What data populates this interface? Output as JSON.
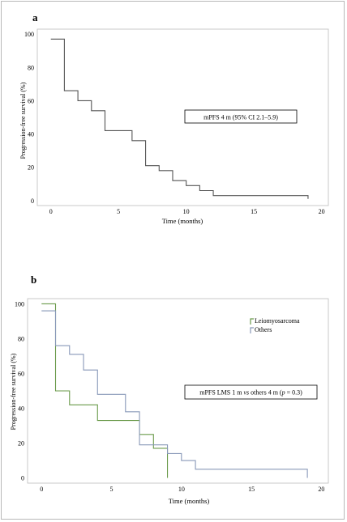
{
  "chart_data": [
    {
      "panel_label": "a",
      "type": "line",
      "step": true,
      "xlabel": "Time (months)",
      "ylabel": "Progression-free survival (%)",
      "xlim": [
        -1,
        20.5
      ],
      "ylim": [
        -3,
        103
      ],
      "x_ticks": [
        0,
        5,
        10,
        15,
        20
      ],
      "y_ticks": [
        0,
        20,
        40,
        60,
        80,
        100
      ],
      "grid": true,
      "annotation": "mPFS 4 m (95% CI 2.1–5.9)",
      "series": [
        {
          "color": "#555555",
          "points": [
            [
              0,
              97
            ],
            [
              1,
              97
            ],
            [
              1,
              66
            ],
            [
              2,
              66
            ],
            [
              2,
              60
            ],
            [
              3,
              60
            ],
            [
              3,
              54
            ],
            [
              4,
              54
            ],
            [
              4,
              42
            ],
            [
              6,
              42
            ],
            [
              6,
              36
            ],
            [
              7,
              36
            ],
            [
              7,
              21
            ],
            [
              8,
              21
            ],
            [
              8,
              18
            ],
            [
              9,
              18
            ],
            [
              9,
              12
            ],
            [
              10,
              12
            ],
            [
              10,
              9
            ],
            [
              11,
              9
            ],
            [
              11,
              6
            ],
            [
              12,
              6
            ],
            [
              12,
              3
            ],
            [
              19,
              3
            ],
            [
              19,
              1
            ]
          ]
        }
      ]
    },
    {
      "panel_label": "b",
      "type": "line",
      "step": true,
      "xlabel": "Time (months)",
      "ylabel": "Progression-free survival (%)",
      "xlim": [
        -1,
        20.5
      ],
      "ylim": [
        -3,
        103
      ],
      "x_ticks": [
        0,
        5,
        10,
        15,
        20
      ],
      "y_ticks": [
        0,
        20,
        40,
        60,
        80,
        100
      ],
      "grid": true,
      "annotation": "mPFS LMS 1 m vs others 4 m (p = 0.3)",
      "legend_position": "top-right",
      "series": [
        {
          "name": "Leiomyosarcoma",
          "color": "#6a9a4a",
          "points": [
            [
              0,
              100
            ],
            [
              1,
              100
            ],
            [
              1,
              50
            ],
            [
              2,
              50
            ],
            [
              2,
              42
            ],
            [
              4,
              42
            ],
            [
              4,
              33
            ],
            [
              7,
              33
            ],
            [
              7,
              25
            ],
            [
              8,
              25
            ],
            [
              8,
              17
            ],
            [
              9,
              17
            ],
            [
              9,
              0
            ]
          ]
        },
        {
          "name": "Others",
          "color": "#8898b8",
          "points": [
            [
              0,
              96
            ],
            [
              1,
              96
            ],
            [
              1,
              76
            ],
            [
              2,
              76
            ],
            [
              2,
              71
            ],
            [
              3,
              71
            ],
            [
              3,
              62
            ],
            [
              4,
              62
            ],
            [
              4,
              48
            ],
            [
              6,
              48
            ],
            [
              6,
              38
            ],
            [
              7,
              38
            ],
            [
              7,
              19
            ],
            [
              9,
              19
            ],
            [
              9,
              14
            ],
            [
              10,
              14
            ],
            [
              10,
              10
            ],
            [
              11,
              10
            ],
            [
              11,
              5
            ],
            [
              19,
              5
            ],
            [
              19,
              0
            ]
          ]
        }
      ]
    }
  ]
}
